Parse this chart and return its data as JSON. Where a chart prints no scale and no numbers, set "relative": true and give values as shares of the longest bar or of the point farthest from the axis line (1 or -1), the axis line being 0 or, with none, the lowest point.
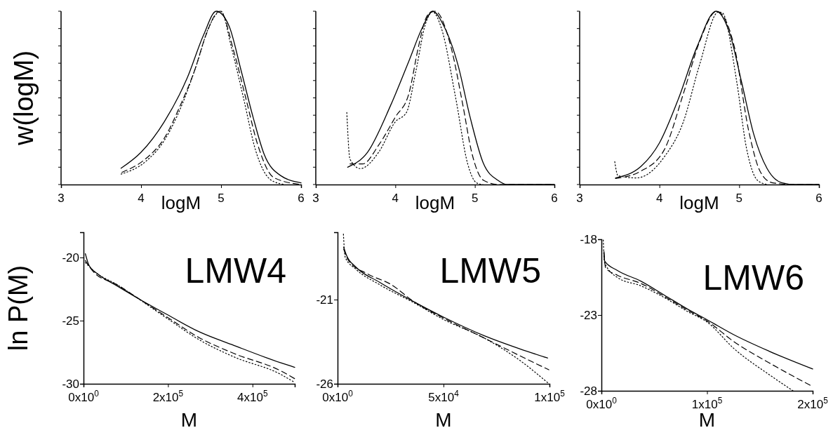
{
  "chart_data": [
    {
      "type": "line",
      "relative": true,
      "ylabel": "w(logM)",
      "xlabel": "logM",
      "xlim": [
        3,
        6
      ],
      "xticks": [
        3,
        4,
        5,
        6
      ],
      "series": [
        {
          "color": "#000000",
          "line_style": "solid",
          "x": [
            3.75,
            4.0,
            4.29,
            4.58,
            4.78,
            4.94,
            5.1,
            5.25,
            5.4,
            5.54,
            5.75,
            6.0
          ],
          "values": [
            0.094,
            0.186,
            0.362,
            0.618,
            0.861,
            1.0,
            0.915,
            0.659,
            0.389,
            0.173,
            0.05,
            0.01
          ]
        },
        {
          "color": "#000000",
          "line_style": "dashed",
          "x": [
            3.76,
            4.05,
            4.29,
            4.49,
            4.67,
            4.81,
            4.96,
            4.99,
            5.16,
            5.31,
            5.46,
            5.66,
            6.0
          ],
          "values": [
            0.07,
            0.146,
            0.267,
            0.456,
            0.659,
            0.861,
            0.996,
            1.0,
            0.767,
            0.497,
            0.227,
            0.04,
            0.0
          ]
        },
        {
          "color": "#000000",
          "line_style": "dotted",
          "x": [
            3.75,
            4.05,
            4.29,
            4.52,
            4.7,
            4.84,
            5.0,
            5.13,
            5.28,
            5.43,
            5.63,
            5.8
          ],
          "values": [
            0.06,
            0.13,
            0.254,
            0.47,
            0.7,
            0.9,
            1.0,
            0.79,
            0.5,
            0.2,
            0.024,
            0.0
          ]
        }
      ]
    },
    {
      "type": "line",
      "relative": true,
      "xlabel": "logM",
      "xlim": [
        3,
        6
      ],
      "xticks": [
        3,
        4,
        5,
        6
      ],
      "series": [
        {
          "color": "#000000",
          "line_style": "solid",
          "x": [
            3.4,
            3.65,
            3.94,
            4.17,
            4.35,
            4.47,
            4.61,
            4.79,
            4.94,
            5.11,
            5.29,
            5.4,
            6.0
          ],
          "values": [
            0.1,
            0.186,
            0.456,
            0.712,
            0.915,
            1.0,
            0.915,
            0.686,
            0.389,
            0.119,
            0.024,
            0.0,
            0.0
          ]
        },
        {
          "color": "#000000",
          "line_style": "dashed",
          "x": [
            3.43,
            3.59,
            3.79,
            4.0,
            4.17,
            4.29,
            4.38,
            4.45,
            4.5,
            4.7,
            4.85,
            4.96,
            5.11,
            5.3,
            6.0
          ],
          "values": [
            0.119,
            0.119,
            0.227,
            0.389,
            0.524,
            0.793,
            0.955,
            0.996,
            1.0,
            0.793,
            0.456,
            0.186,
            0.024,
            0.0,
            0.0
          ]
        },
        {
          "color": "#000000",
          "line_style": "dotted",
          "x": [
            3.39,
            3.43,
            3.56,
            3.79,
            4.0,
            4.14,
            4.26,
            4.38,
            4.47,
            4.58,
            4.76,
            4.91,
            5.02,
            5.1
          ],
          "values": [
            0.416,
            0.146,
            0.092,
            0.186,
            0.362,
            0.416,
            0.659,
            0.928,
            0.996,
            0.901,
            0.497,
            0.119,
            0.01,
            0.0
          ]
        }
      ]
    },
    {
      "type": "line",
      "relative": true,
      "xlabel": "logM",
      "xlim": [
        3,
        6
      ],
      "xticks": [
        3,
        4,
        5,
        6
      ],
      "series": [
        {
          "color": "#000000",
          "line_style": "solid",
          "x": [
            3.45,
            3.77,
            4.0,
            4.24,
            4.47,
            4.71,
            4.88,
            5.03,
            5.18,
            5.35,
            5.53,
            5.7,
            6.0
          ],
          "values": [
            0.038,
            0.105,
            0.24,
            0.497,
            0.793,
            1.0,
            0.874,
            0.591,
            0.294,
            0.092,
            0.011,
            0.0,
            0.0
          ]
        },
        {
          "color": "#000000",
          "line_style": "dashed",
          "x": [
            3.45,
            3.77,
            4.06,
            4.3,
            4.5,
            4.72,
            4.94,
            5.12,
            5.26,
            5.41,
            5.7,
            6.0
          ],
          "values": [
            0.035,
            0.078,
            0.2,
            0.524,
            0.82,
            1.0,
            0.793,
            0.308,
            0.078,
            0.011,
            0.0,
            0.0
          ]
        },
        {
          "color": "#000000",
          "line_style": "dotted",
          "x": [
            3.44,
            3.48,
            3.71,
            4.06,
            4.3,
            4.5,
            4.74,
            4.79,
            4.97,
            5.09,
            5.23,
            5.35
          ],
          "values": [
            0.132,
            0.051,
            0.038,
            0.159,
            0.362,
            0.686,
            0.996,
            0.99,
            0.591,
            0.213,
            0.024,
            0.0
          ]
        }
      ]
    },
    {
      "type": "line",
      "ylabel": "ln P(M)",
      "xlabel": "M",
      "annotations": [
        "LMW4"
      ],
      "xlim": [
        0,
        500000
      ],
      "xticks": [
        {
          "value": 0,
          "label": "0x10$^{0}$"
        },
        {
          "value": 200000,
          "label": "2x10$^{5}$"
        },
        {
          "value": 400000,
          "label": "4x10$^{5}$"
        }
      ],
      "ylim": [
        -30,
        -18
      ],
      "yticks": [
        -20,
        -25,
        -30
      ],
      "series": [
        {
          "color": "#000000",
          "line_style": "solid",
          "x": [
            4400,
            12700,
            34900,
            79100,
            134000,
            197000,
            273000,
            356000,
            466000,
            500000
          ],
          "values": [
            -19.7,
            -20.6,
            -21.33,
            -22.24,
            -23.33,
            -24.5,
            -25.87,
            -26.96,
            -28.33,
            -28.7
          ]
        },
        {
          "color": "#000000",
          "line_style": "dashed",
          "x": [
            4400,
            23800,
            79100,
            134000,
            197000,
            273000,
            356000,
            466000,
            500000
          ],
          "values": [
            -20.24,
            -21.15,
            -22.15,
            -23.33,
            -24.7,
            -26.33,
            -27.6,
            -28.96,
            -29.6
          ]
        },
        {
          "color": "#000000",
          "line_style": "dotted",
          "x": [
            4400,
            23800,
            79100,
            197000,
            273000,
            356000,
            466000,
            500000
          ],
          "values": [
            -20.4,
            -21.05,
            -22.15,
            -24.8,
            -26.5,
            -27.87,
            -29.24,
            -29.9
          ]
        }
      ]
    },
    {
      "type": "line",
      "xlabel": "M",
      "annotations": [
        "LMW5"
      ],
      "xlim": [
        0,
        100000
      ],
      "xticks": [
        {
          "value": 0,
          "label": "0x10$^{0}$"
        },
        {
          "value": 50000,
          "label": "5x10$^{4}$"
        },
        {
          "value": 100000,
          "label": "1x10$^{5}$"
        }
      ],
      "ylim": [
        -26,
        -17
      ],
      "yticks": [
        -21,
        -26
      ],
      "series": [
        {
          "color": "#000000",
          "line_style": "solid",
          "x": [
            2870,
            4200,
            8600,
            19650,
            36200,
            50000,
            69300,
            85900,
            99100
          ],
          "values": [
            -17.88,
            -18.36,
            -19.06,
            -19.96,
            -21.14,
            -22.04,
            -23.15,
            -23.92,
            -24.47
          ]
        },
        {
          "color": "#000000",
          "line_style": "dashed",
          "x": [
            2870,
            5300,
            14100,
            25200,
            36200,
            50000,
            69300,
            85900,
            99700
          ],
          "values": [
            -18.0,
            -18.7,
            -19.47,
            -20.1,
            -21.14,
            -22.1,
            -23.29,
            -24.33,
            -25.17
          ]
        },
        {
          "color": "#000000",
          "line_style": "dotted",
          "x": [
            2760,
            3640,
            8600,
            19650,
            36200,
            50000,
            69300,
            85900,
            99100
          ],
          "values": [
            -17.11,
            -18.5,
            -19.19,
            -20.1,
            -21.2,
            -22.18,
            -23.29,
            -24.6,
            -25.93
          ]
        }
      ]
    },
    {
      "type": "line",
      "xlabel": "M",
      "annotations": [
        "LMW6"
      ],
      "xlim": [
        0,
        200000
      ],
      "xticks": [
        {
          "value": 0,
          "label": "0x10$^{0}$"
        },
        {
          "value": 100000,
          "label": "1x10$^{5}$"
        },
        {
          "value": 200000,
          "label": "2x10$^{5}$"
        }
      ],
      "ylim": [
        -28,
        -18
      ],
      "yticks": [
        -18,
        -23,
        -28
      ],
      "series": [
        {
          "color": "#000000",
          "line_style": "solid",
          "x": [
            2440,
            3100,
            15100,
            37200,
            59400,
            81600,
            100000,
            125900,
            159200,
            200000
          ],
          "values": [
            -18.82,
            -19.44,
            -20.06,
            -20.76,
            -21.68,
            -22.61,
            -23.31,
            -24.32,
            -25.4,
            -26.56
          ]
        },
        {
          "color": "#000000",
          "line_style": "dashed",
          "x": [
            2440,
            4000,
            15100,
            37200,
            59400,
            81600,
            100000,
            125900,
            159200,
            200000
          ],
          "values": [
            -18.9,
            -19.9,
            -20.37,
            -20.91,
            -21.76,
            -22.69,
            -23.39,
            -24.78,
            -26.17,
            -27.72
          ]
        },
        {
          "color": "#000000",
          "line_style": "dotted",
          "x": [
            1770,
            2880,
            15100,
            37200,
            59400,
            81600,
            100000,
            125900,
            159200,
            181400
          ],
          "values": [
            -18.05,
            -19.52,
            -20.52,
            -21.07,
            -21.84,
            -22.77,
            -23.46,
            -25.24,
            -26.95,
            -28.0
          ]
        }
      ]
    }
  ]
}
